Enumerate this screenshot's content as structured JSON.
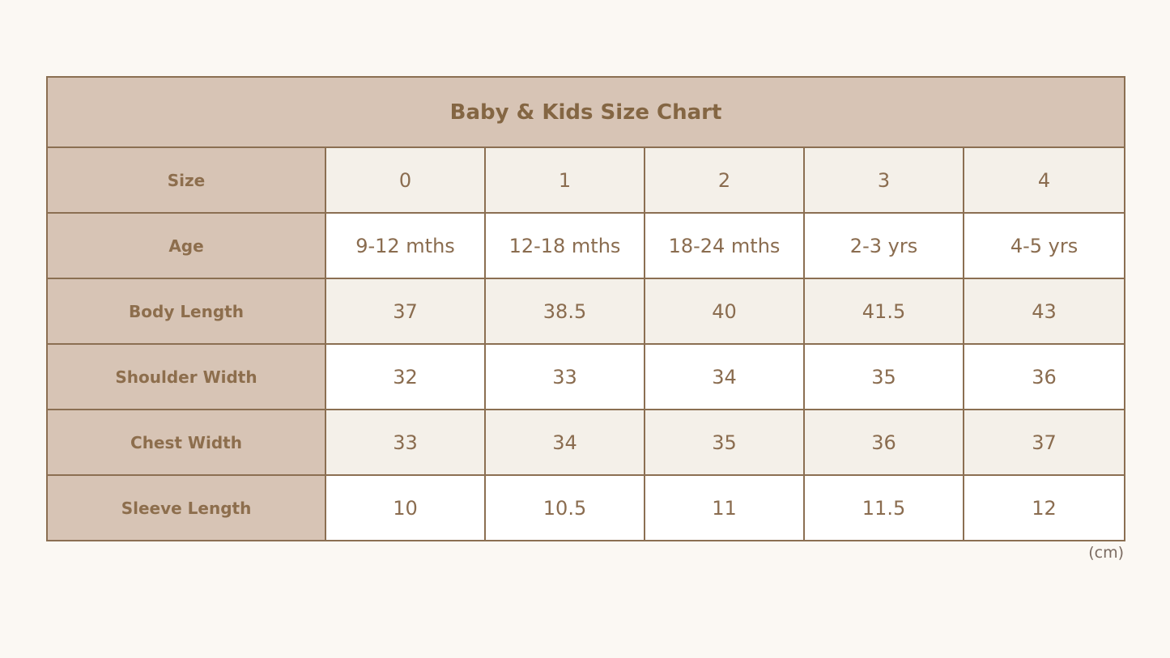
{
  "chart_data": {
    "type": "table",
    "title": "Baby & Kids Size Chart",
    "header_label": "Size",
    "sizes": [
      "0",
      "1",
      "2",
      "3",
      "4"
    ],
    "rows": [
      {
        "label": "Age",
        "values": [
          "9-12 mths",
          "12-18 mths",
          "18-24 mths",
          "2-3 yrs",
          "4-5 yrs"
        ]
      },
      {
        "label": "Body Length",
        "values": [
          "37",
          "38.5",
          "40",
          "41.5",
          "43"
        ]
      },
      {
        "label": "Shoulder Width",
        "values": [
          "32",
          "33",
          "34",
          "35",
          "36"
        ]
      },
      {
        "label": "Chest Width",
        "values": [
          "33",
          "34",
          "35",
          "36",
          "37"
        ]
      },
      {
        "label": "Sleeve Length",
        "values": [
          "10",
          "10.5",
          "11",
          "11.5",
          "12"
        ]
      }
    ],
    "unit": "(cm)"
  },
  "colors": {
    "background": "#fbf8f3",
    "header_fill": "#d7c4b5",
    "shaded_row": "#f4f0e9",
    "plain_row": "#ffffff",
    "border": "#8b6f52",
    "text": "#876a4d"
  }
}
